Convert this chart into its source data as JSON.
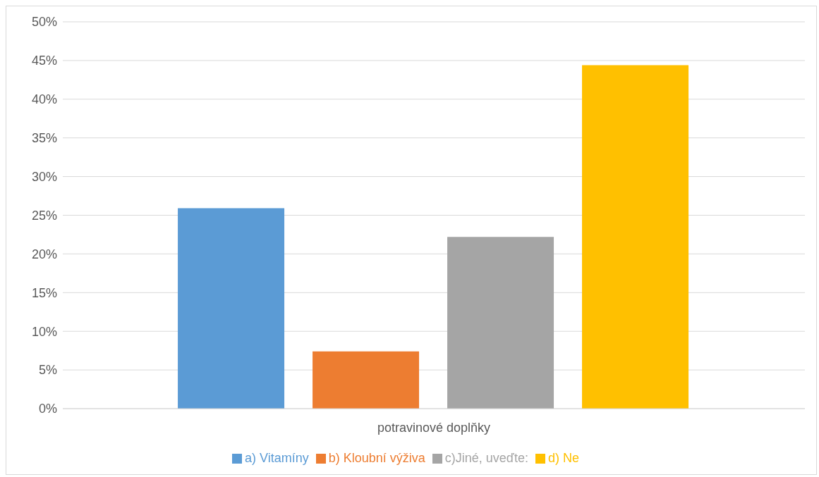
{
  "chart_data": {
    "type": "bar",
    "categories": [
      "potravinové doplňky"
    ],
    "series": [
      {
        "name": "a) Vitamíny",
        "color": "#5b9bd5",
        "values": [
          25.9
        ]
      },
      {
        "name": "b) Kloubní výživa",
        "color": "#ed7d31",
        "values": [
          7.4
        ]
      },
      {
        "name": "c)Jiné, uveďte:",
        "color": "#a5a5a5",
        "values": [
          22.2
        ]
      },
      {
        "name": "d) Ne",
        "color": "#ffc000",
        "values": [
          44.4
        ]
      }
    ],
    "ylim": [
      0,
      50
    ],
    "yticks": [
      {
        "value": 0,
        "label": "0%"
      },
      {
        "value": 5,
        "label": "5%"
      },
      {
        "value": 10,
        "label": "10%"
      },
      {
        "value": 15,
        "label": "15%"
      },
      {
        "value": 20,
        "label": "20%"
      },
      {
        "value": 25,
        "label": "25%"
      },
      {
        "value": 30,
        "label": "30%"
      },
      {
        "value": 35,
        "label": "35%"
      },
      {
        "value": 40,
        "label": "40%"
      },
      {
        "value": 45,
        "label": "45%"
      },
      {
        "value": 50,
        "label": "50%"
      }
    ],
    "grid": "y",
    "legend": "bottom"
  }
}
